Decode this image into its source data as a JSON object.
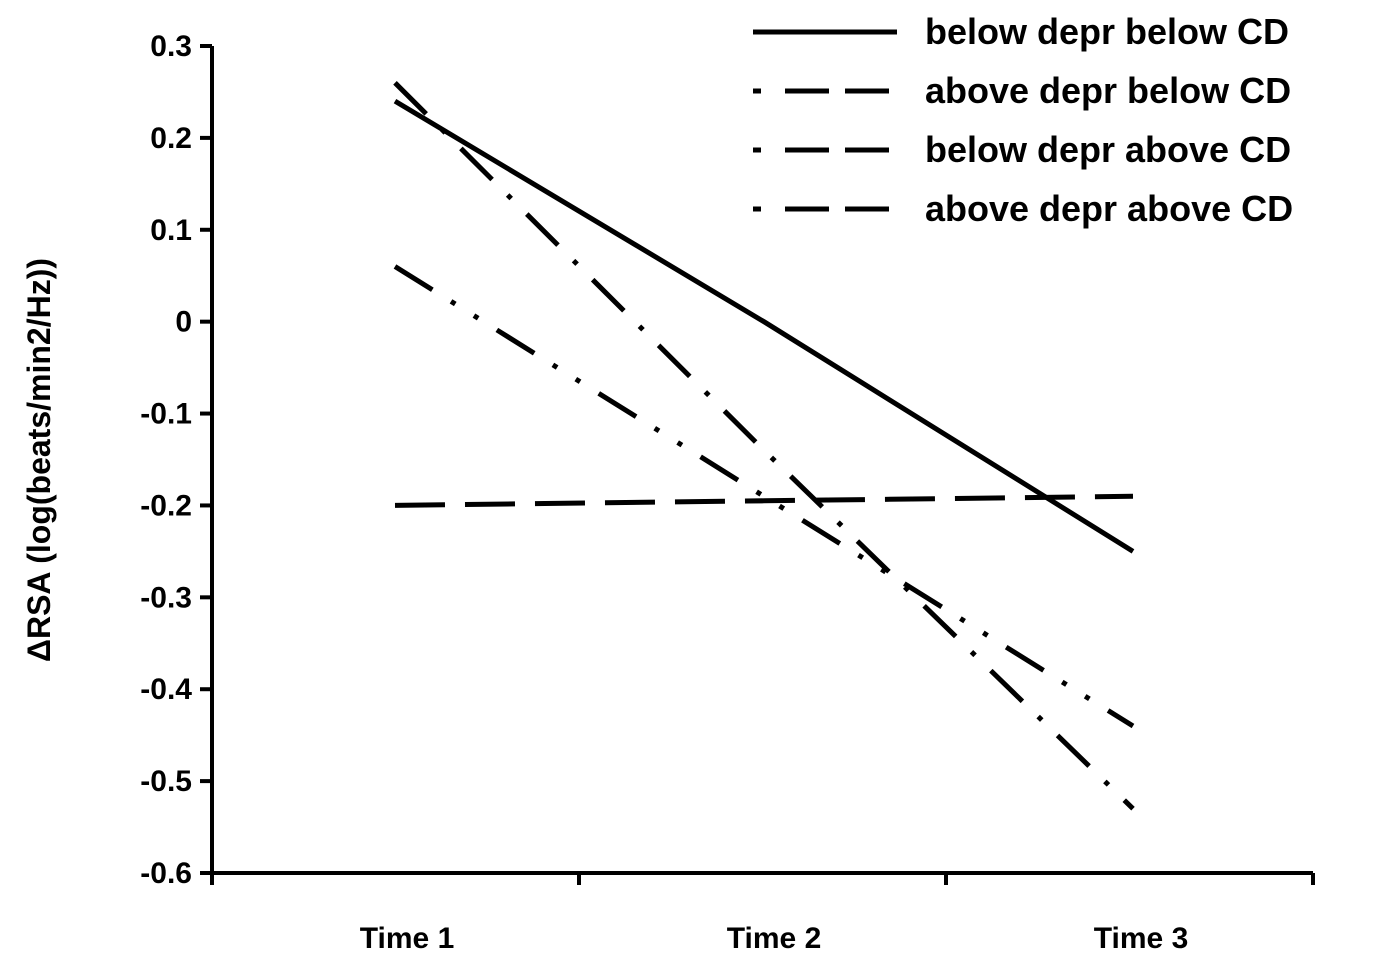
{
  "chart_data": {
    "type": "line",
    "title": "",
    "xlabel": "",
    "ylabel": "ΔRSA (log(beats/min2/Hz))",
    "categories": [
      "Time 1",
      "Time 2",
      "Time 3"
    ],
    "ylim": [
      -0.6,
      0.3
    ],
    "yticks": [
      "0.3",
      "0.2",
      "0.1",
      "0",
      "-0.1",
      "-0.2",
      "-0.3",
      "-0.4",
      "-0.5",
      "-0.6"
    ],
    "grid": false,
    "legend_position": "top-right",
    "series": [
      {
        "name": "below depr below CD",
        "values": [
          0.24,
          0.0,
          -0.25
        ],
        "style": "solid"
      },
      {
        "name": "above depr below CD",
        "values": [
          0.26,
          -0.14,
          -0.53
        ],
        "style": "long-dash-dot"
      },
      {
        "name": "below depr above CD",
        "values": [
          -0.2,
          -0.195,
          -0.19
        ],
        "style": "long-dash"
      },
      {
        "name": "above depr above CD",
        "values": [
          0.06,
          -0.19,
          -0.44
        ],
        "style": "dash-dot-dot"
      }
    ],
    "line_color": "#000000"
  }
}
